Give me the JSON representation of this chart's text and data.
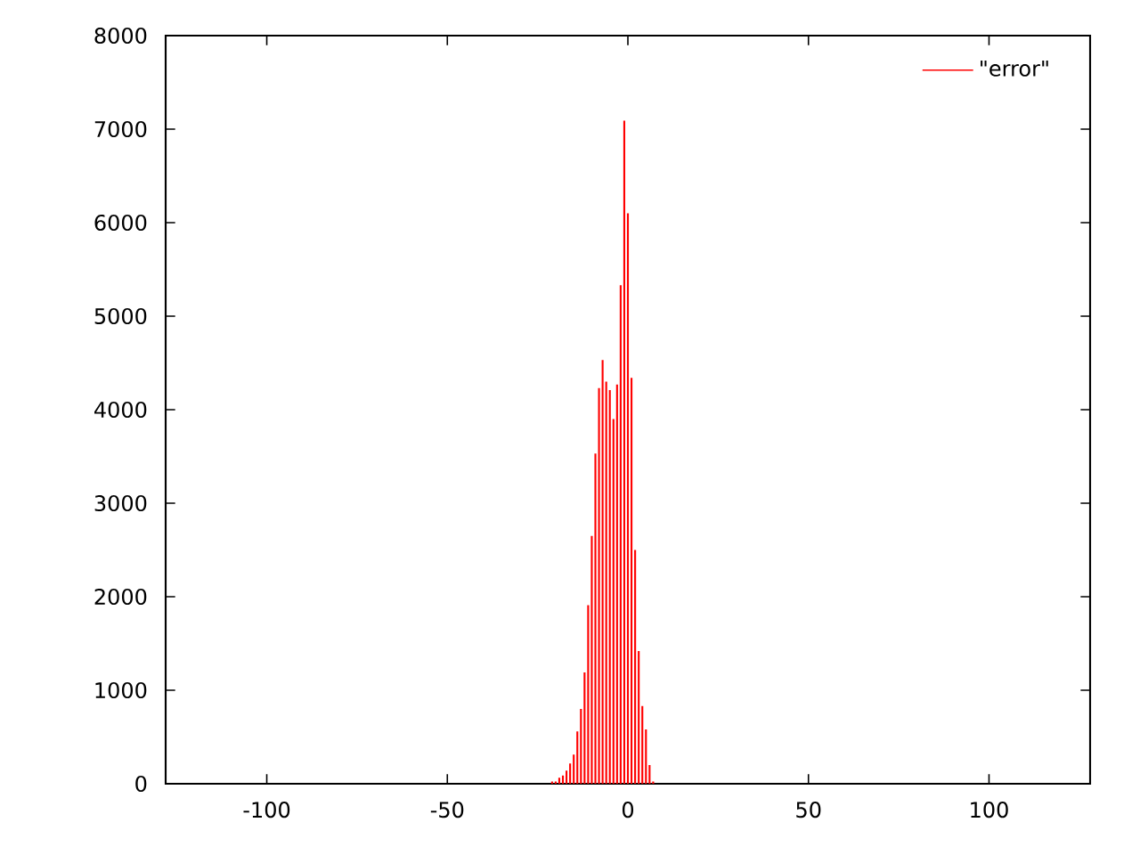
{
  "chart_data": {
    "type": "bar",
    "x": [
      -21,
      -20,
      -19,
      -18,
      -17,
      -16,
      -15,
      -14,
      -13,
      -12,
      -11,
      -10,
      -9,
      -8,
      -7,
      -6,
      -5,
      -4,
      -3,
      -2,
      -1,
      0,
      1,
      2,
      3,
      4,
      5,
      6,
      7
    ],
    "series": [
      {
        "name": "\"error\"",
        "color": "#ff0000",
        "values": [
          25,
          25,
          64,
          89,
          140,
          216,
          311,
          559,
          800,
          1190,
          1910,
          2650,
          3530,
          4230,
          4530,
          4300,
          4210,
          3900,
          4270,
          5330,
          7090,
          6100,
          4340,
          2500,
          1420,
          830,
          580,
          200,
          25
        ]
      }
    ],
    "xlim": [
      -128,
      128
    ],
    "ylim": [
      0,
      8000
    ],
    "xticks": [
      -100,
      -50,
      0,
      50,
      100
    ],
    "yticks": [
      0,
      1000,
      2000,
      3000,
      4000,
      5000,
      6000,
      7000,
      8000
    ],
    "legend": "top right"
  }
}
